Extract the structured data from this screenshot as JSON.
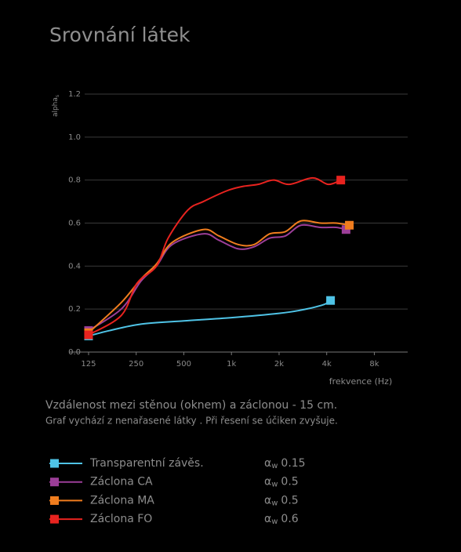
{
  "chart_data": {
    "type": "line",
    "title": "Srovnání látek",
    "y_label": "alpha",
    "y_label_sub": "s",
    "x_label": "frekvence (Hz)",
    "log_x": true,
    "grid": true,
    "xlim": [
      94,
      13000
    ],
    "xticks": [
      125,
      250,
      500,
      {
        "value": 1000,
        "label": "1k"
      },
      {
        "value": 2000,
        "label": "2k"
      },
      {
        "value": 4000,
        "label": "4k"
      },
      {
        "value": 8000,
        "label": "8k"
      }
    ],
    "ylim": [
      0,
      1.2
    ],
    "yticks": [
      {
        "value": 0,
        "label": "0.0"
      },
      0.2,
      0.4,
      0.6,
      0.8,
      {
        "value": 1,
        "label": "1.0"
      },
      1.2
    ],
    "notes": [
      "Vzdálenost mezi stěnou (oknem) a záclonou - 15 cm.",
      "Graf vychází z nenařasené látky . Při řesení se účiken zvyšuje."
    ],
    "rating_symbol": "α",
    "rating_subscript": "w",
    "series": [
      {
        "name": "Transparentní závěs.",
        "color": "#4fc3e6",
        "rating": 0.15,
        "x": [
          125,
          170,
          268,
          500,
          1000,
          2000,
          2749,
          3800,
          4230
        ],
        "values": [
          0.075,
          0.1,
          0.13,
          0.145,
          0.16,
          0.18,
          0.195,
          0.22,
          0.24
        ]
      },
      {
        "name": "Záclona CA",
        "color": "#9c3e98",
        "rating": 0.5,
        "x": [
          125,
          201,
          268,
          336,
          422,
          664,
          834,
          1107,
          1390,
          1745,
          2190,
          2749,
          3651,
          4585,
          5300
        ],
        "values": [
          0.1,
          0.2,
          0.33,
          0.4,
          0.5,
          0.55,
          0.52,
          0.48,
          0.49,
          0.53,
          0.54,
          0.59,
          0.58,
          0.58,
          0.57
        ]
      },
      {
        "name": "Záclona MA",
        "color": "#f07d1e",
        "rating": 0.5,
        "x": [
          125,
          201,
          268,
          336,
          422,
          664,
          834,
          1107,
          1390,
          1745,
          2190,
          2749,
          3651,
          4585,
          5560
        ],
        "values": [
          0.09,
          0.23,
          0.34,
          0.41,
          0.51,
          0.57,
          0.54,
          0.5,
          0.5,
          0.55,
          0.56,
          0.61,
          0.6,
          0.6,
          0.59
        ]
      },
      {
        "name": "Záclona FO",
        "color": "#e8231f",
        "rating": 0.6,
        "x": [
          125,
          201,
          253,
          336,
          398,
          529,
          664,
          934,
          1172,
          1471,
          1847,
          2318,
          3260,
          4090,
          4910
        ],
        "values": [
          0.08,
          0.17,
          0.32,
          0.4,
          0.53,
          0.66,
          0.7,
          0.75,
          0.77,
          0.78,
          0.8,
          0.78,
          0.81,
          0.78,
          0.8
        ]
      }
    ]
  }
}
